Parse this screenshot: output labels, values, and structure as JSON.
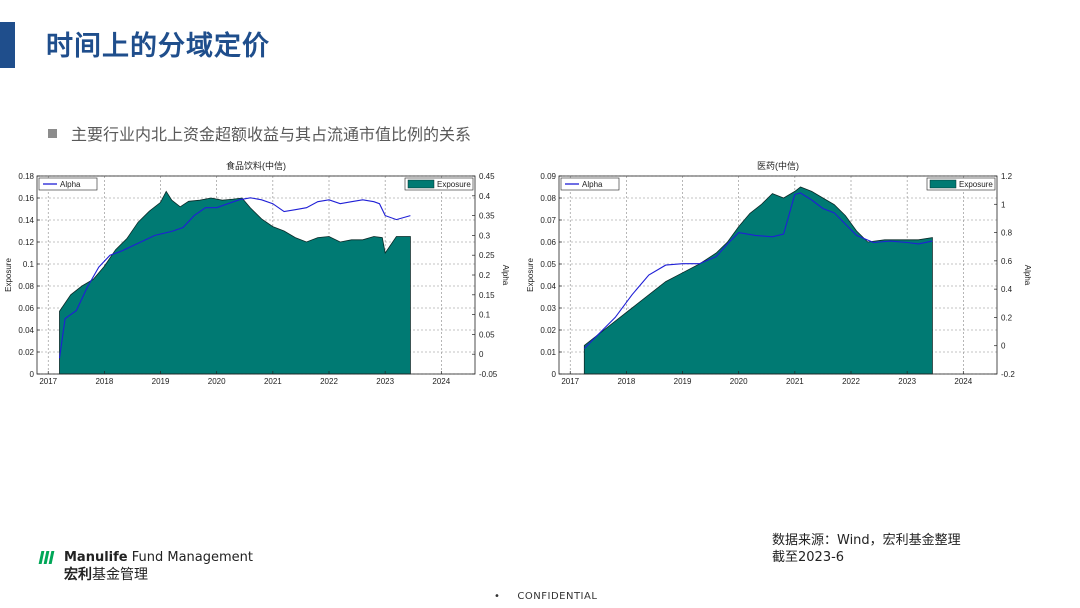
{
  "page": {
    "title": "时间上的分域定价",
    "subtitle": "主要行业内北上资金超额收益与其占流通市值比例的关系",
    "source_line1": "数据来源：Wind，宏利基金整理",
    "source_line2": "截至2023-6",
    "confidential": "CONFIDENTIAL",
    "logo_en_bold": "Manulife",
    "logo_en_rest": " Fund Management",
    "logo_cn_bold": "宏利",
    "logo_cn_rest": "基金管理",
    "accent_color": "#1f4e8c",
    "logo_color": "#00a758"
  },
  "chart_data": [
    {
      "type": "area",
      "title": "食品饮料(中信)",
      "ylabel": "Exposure",
      "ylabel_right": "Alpha",
      "ylim": [
        0,
        0.18
      ],
      "yticks": [
        "0",
        "0.02",
        "0.04",
        "0.06",
        "0.08",
        "0.1",
        "0.12",
        "0.14",
        "0.16",
        "0.18"
      ],
      "ylim_right": [
        -0.05,
        0.45
      ],
      "yticks_right": [
        "-0.05",
        "0",
        "0.05",
        "0.1",
        "0.15",
        "0.2",
        "0.25",
        "0.3",
        "0.35",
        "0.4",
        "0.45"
      ],
      "xlim": [
        2016.8,
        2024.6
      ],
      "xticks": [
        "2017",
        "2018",
        "2019",
        "2020",
        "2021",
        "2022",
        "2023",
        "2024"
      ],
      "grid": true,
      "legend": [
        "top-left: Alpha",
        "top-right: Exposure"
      ],
      "series": [
        {
          "name": "Exposure",
          "axis": "left",
          "color": "#007a73",
          "x": [
            2017.2,
            2017.2,
            2017.4,
            2017.6,
            2017.8,
            2018.0,
            2018.2,
            2018.4,
            2018.6,
            2018.8,
            2019.0,
            2019.1,
            2019.2,
            2019.35,
            2019.5,
            2019.7,
            2019.9,
            2020.1,
            2020.3,
            2020.45,
            2020.6,
            2020.8,
            2021.0,
            2021.2,
            2021.4,
            2021.6,
            2021.8,
            2022.0,
            2022.2,
            2022.4,
            2022.6,
            2022.8,
            2022.95,
            2023.0,
            2023.2,
            2023.45
          ],
          "values": [
            0,
            0.057,
            0.072,
            0.08,
            0.086,
            0.098,
            0.113,
            0.123,
            0.138,
            0.148,
            0.156,
            0.166,
            0.158,
            0.152,
            0.157,
            0.158,
            0.16,
            0.158,
            0.159,
            0.16,
            0.151,
            0.141,
            0.134,
            0.13,
            0.124,
            0.12,
            0.124,
            0.125,
            0.12,
            0.122,
            0.122,
            0.125,
            0.124,
            0.11,
            0.125,
            0.125
          ]
        },
        {
          "name": "Alpha",
          "axis": "right",
          "color": "#1f1fd6",
          "x": [
            2017.2,
            2017.3,
            2017.5,
            2017.7,
            2017.9,
            2018.1,
            2018.3,
            2018.6,
            2018.9,
            2019.2,
            2019.4,
            2019.6,
            2019.8,
            2020.0,
            2020.2,
            2020.4,
            2020.6,
            2020.8,
            2021.0,
            2021.2,
            2021.4,
            2021.6,
            2021.8,
            2022.0,
            2022.2,
            2022.4,
            2022.6,
            2022.8,
            2022.9,
            2023.0,
            2023.2,
            2023.45
          ],
          "values": [
            -0.01,
            0.09,
            0.11,
            0.17,
            0.22,
            0.25,
            0.26,
            0.28,
            0.3,
            0.31,
            0.32,
            0.35,
            0.37,
            0.37,
            0.38,
            0.39,
            0.395,
            0.39,
            0.38,
            0.36,
            0.365,
            0.37,
            0.385,
            0.39,
            0.38,
            0.385,
            0.39,
            0.385,
            0.38,
            0.35,
            0.34,
            0.35
          ]
        }
      ]
    },
    {
      "type": "area",
      "title": "医药(中信)",
      "ylabel": "Exposure",
      "ylabel_right": "Alpha",
      "ylim": [
        0,
        0.09
      ],
      "yticks": [
        "0",
        "0.01",
        "0.02",
        "0.03",
        "0.04",
        "0.05",
        "0.06",
        "0.07",
        "0.08",
        "0.09"
      ],
      "ylim_right": [
        -0.2,
        1.2
      ],
      "yticks_right": [
        "-0.2",
        "0",
        "0.2",
        "0.4",
        "0.6",
        "0.8",
        "1",
        "1.2"
      ],
      "xlim": [
        2016.8,
        2024.6
      ],
      "xticks": [
        "2017",
        "2018",
        "2019",
        "2020",
        "2021",
        "2022",
        "2023",
        "2024"
      ],
      "grid": true,
      "legend": [
        "top-left: Alpha",
        "top-right: Exposure"
      ],
      "series": [
        {
          "name": "Exposure",
          "axis": "left",
          "color": "#007a73",
          "x": [
            2017.25,
            2017.25,
            2017.5,
            2017.8,
            2018.1,
            2018.4,
            2018.7,
            2019.0,
            2019.3,
            2019.6,
            2019.8,
            2020.0,
            2020.2,
            2020.4,
            2020.6,
            2020.8,
            2021.0,
            2021.1,
            2021.3,
            2021.5,
            2021.7,
            2021.9,
            2022.1,
            2022.3,
            2022.6,
            2022.9,
            2023.2,
            2023.45
          ],
          "values": [
            0,
            0.013,
            0.018,
            0.024,
            0.03,
            0.036,
            0.042,
            0.046,
            0.05,
            0.055,
            0.06,
            0.067,
            0.073,
            0.077,
            0.082,
            0.08,
            0.083,
            0.085,
            0.083,
            0.08,
            0.077,
            0.072,
            0.065,
            0.06,
            0.061,
            0.061,
            0.061,
            0.062
          ]
        },
        {
          "name": "Alpha",
          "axis": "right",
          "color": "#1f1fd6",
          "x": [
            2017.25,
            2017.5,
            2017.8,
            2018.1,
            2018.4,
            2018.7,
            2019.0,
            2019.3,
            2019.6,
            2019.8,
            2020.0,
            2020.3,
            2020.6,
            2020.8,
            2021.0,
            2021.1,
            2021.3,
            2021.5,
            2021.7,
            2021.9,
            2022.1,
            2022.4,
            2022.7,
            2023.0,
            2023.2,
            2023.45
          ],
          "values": [
            -0.02,
            0.08,
            0.2,
            0.36,
            0.5,
            0.57,
            0.58,
            0.58,
            0.63,
            0.72,
            0.8,
            0.78,
            0.77,
            0.79,
            1.07,
            1.08,
            1.03,
            0.97,
            0.94,
            0.86,
            0.78,
            0.73,
            0.74,
            0.73,
            0.72,
            0.74
          ]
        }
      ]
    }
  ]
}
